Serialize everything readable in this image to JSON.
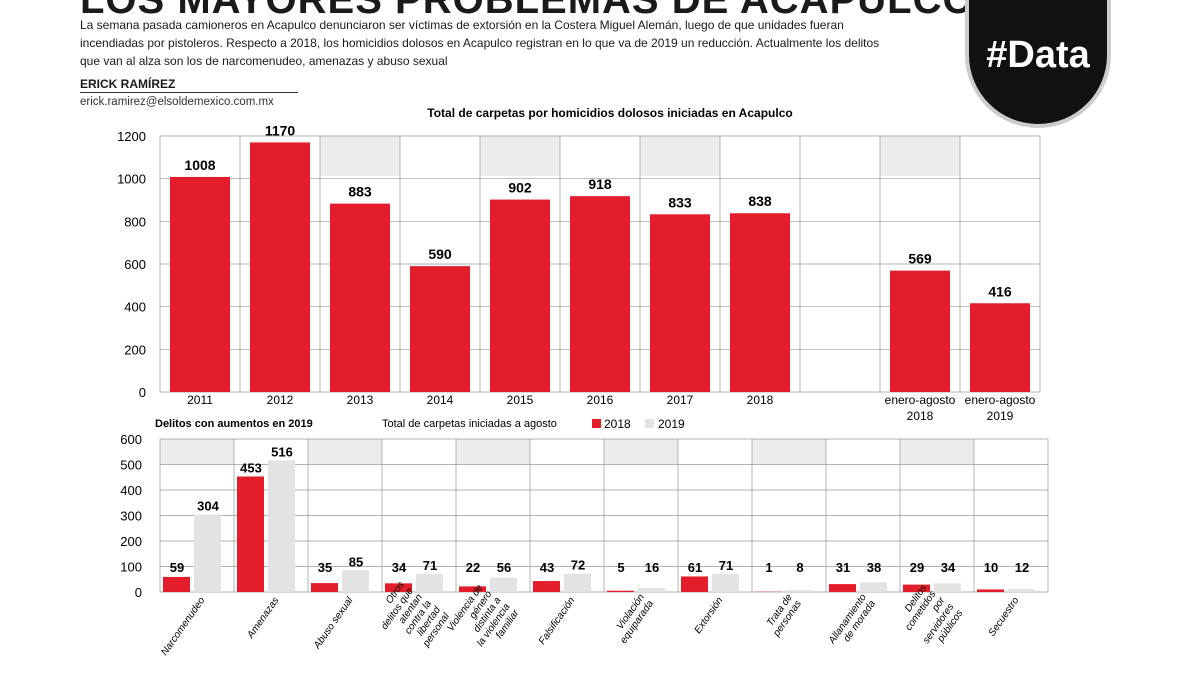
{
  "header": {
    "title": "LOS MAYORES PROBLEMAS DE ACAPULCO",
    "intro": "La semana pasada camioneros en Acapulco denunciaron ser víctimas de extorsión en la Costera Miguel Alemán, luego de que unidades fueran incendiadas por pistoleros. Respecto a 2018, los homicidios dolosos en Acapulco registran en lo que va de 2019 un reducción. Actualmente los delitos que van al alza son los de narcomenudeo, amenazas  y abuso sexual",
    "author": "ERICK RAMÍREZ",
    "email": "erick.ramirez@elsoldemexico.com.mx",
    "logo": "#Data"
  },
  "colors": {
    "red": "#e31e2a",
    "grey": "#e3e3e3",
    "band": "#ececec"
  },
  "chart_data": [
    {
      "type": "bar",
      "title": "Total de carpetas por homicidios dolosos iniciadas en Acapulco",
      "categories": [
        "2011",
        "2012",
        "2013",
        "2014",
        "2015",
        "2016",
        "2017",
        "2018",
        "",
        "enero-agosto 2018",
        "enero-agosto 2019"
      ],
      "values": [
        1008,
        1170,
        883,
        590,
        902,
        918,
        833,
        838,
        null,
        569,
        416
      ],
      "yticks": [
        0,
        200,
        400,
        600,
        800,
        1000,
        1200
      ],
      "ylim": [
        0,
        1200
      ]
    },
    {
      "type": "bar",
      "title": "Delitos con aumentos en 2019",
      "subtitle": "Total de carpetas iniciadas a agosto",
      "legend": [
        "2018",
        "2019"
      ],
      "categories": [
        "Narcomenudeo",
        "Amenazas",
        "Abuso sexual",
        "Otros delitos que atentan contra la libertad personal",
        "Violencia de género distinta a la violencia familiar",
        "Falsificación",
        "Violación equiparada",
        "Extorsión",
        "Trata de personas",
        "Allanamiento de morada",
        "Delitos cometidos por servidores públicos",
        "Secuestro"
      ],
      "series": [
        {
          "name": "2018",
          "values": [
            59,
            453,
            35,
            34,
            22,
            43,
            5,
            61,
            1,
            31,
            29,
            10
          ]
        },
        {
          "name": "2019",
          "values": [
            304,
            516,
            85,
            71,
            56,
            72,
            16,
            71,
            8,
            38,
            34,
            12
          ]
        }
      ],
      "yticks": [
        0,
        100,
        200,
        300,
        400,
        500,
        600
      ],
      "ylim": [
        0,
        600
      ]
    }
  ]
}
